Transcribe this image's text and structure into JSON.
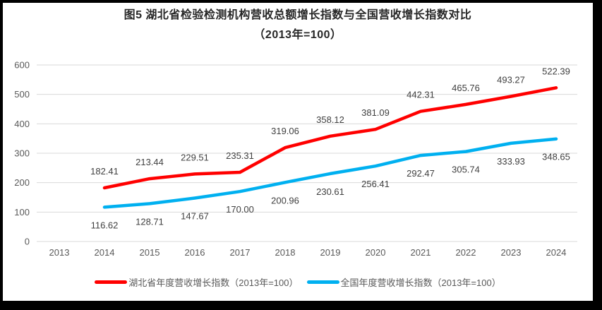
{
  "title": {
    "line1": "图5 湖北省检验检测机构营收总额增长指数与全国营收增长指数对比",
    "line2": "（2013年=100）"
  },
  "chart_data": {
    "type": "line",
    "title": "图5 湖北省检验检测机构营收总额增长指数与全国营收增长指数对比（2013年=100）",
    "categories": [
      "2013",
      "2014",
      "2015",
      "2016",
      "2017",
      "2018",
      "2019",
      "2020",
      "2021",
      "2022",
      "2023",
      "2024"
    ],
    "series": [
      {
        "name": "湖北省年度营收增长指数（2013年=100）",
        "color": "#FF0000",
        "label_position": "above",
        "values": [
          null,
          182.41,
          213.44,
          229.51,
          235.31,
          319.06,
          358.12,
          381.09,
          442.31,
          465.76,
          493.27,
          522.39
        ]
      },
      {
        "name": "全国年度营收增长指数（2013年=100）",
        "color": "#00B0F0",
        "label_position": "below",
        "values": [
          null,
          116.62,
          128.71,
          147.67,
          170.0,
          200.96,
          230.61,
          256.41,
          292.47,
          305.74,
          333.93,
          348.65
        ]
      }
    ],
    "ylim": [
      0,
      600
    ],
    "ytick_step": 100,
    "yticks": [
      0,
      100,
      200,
      300,
      400,
      500,
      600
    ],
    "grid": true,
    "data_labels": true,
    "label_decimals": 2,
    "legend_position": "bottom"
  },
  "colors": {
    "background": "#FFFFFF",
    "frame": "#000000",
    "grid": "#D9D9D9",
    "tick_text": "#595959",
    "data_label_text": "#404040",
    "title_text": "#262626",
    "legend_text": "#595959"
  }
}
